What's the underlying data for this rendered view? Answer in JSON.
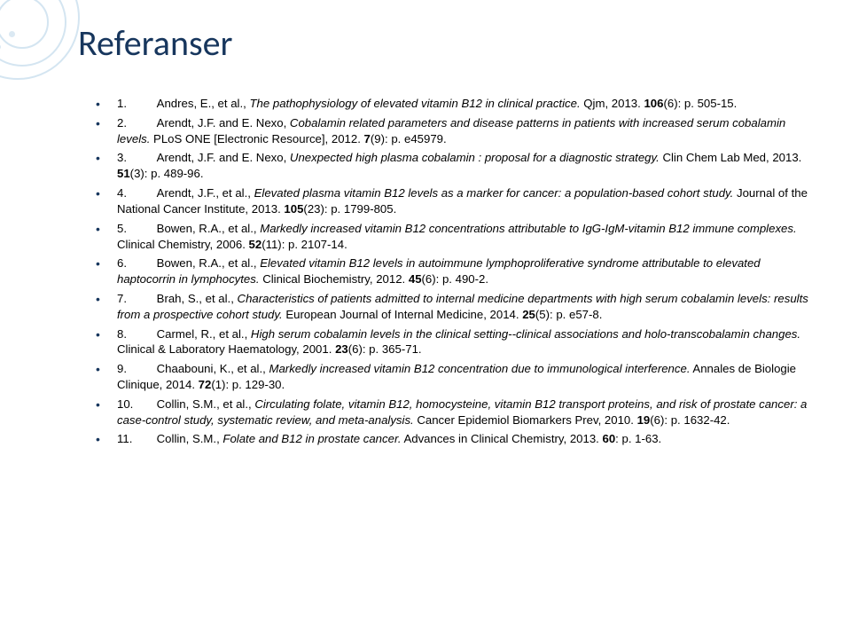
{
  "title": "Referanser",
  "colors": {
    "title_color": "#17365d",
    "bullet_color": "#17365d",
    "decoration_color": "#b8d4e8",
    "text_color": "#000000",
    "background": "#ffffff"
  },
  "typography": {
    "title_fontsize": 40,
    "body_fontsize": 13.2,
    "title_family": "Calibri",
    "body_family": "Verdana"
  },
  "references": [
    {
      "num": "1.",
      "lead": "Andres, E., et al., ",
      "title_italic": "The pathophysiology of elevated vitamin B12 in clinical practice.",
      "rest": " Qjm, 2013. ",
      "vol": "106",
      "tail": "(6): p. 505-15."
    },
    {
      "num": "2.",
      "lead": "Arendt, J.F. and E. Nexo, ",
      "title_italic": "Cobalamin related parameters and disease patterns in patients with increased serum cobalamin levels.",
      "rest": " PLoS ONE [Electronic Resource], 2012. ",
      "vol": "7",
      "tail": "(9): p. e45979."
    },
    {
      "num": "3.",
      "lead": "Arendt, J.F. and E. Nexo, ",
      "title_italic": "Unexpected high plasma cobalamin : proposal for a diagnostic strategy.",
      "rest": " Clin Chem Lab Med, 2013. ",
      "vol": "51",
      "tail": "(3): p. 489-96."
    },
    {
      "num": "4.",
      "lead": "Arendt, J.F., et al., ",
      "title_italic": "Elevated plasma vitamin B12 levels as a marker for cancer: a population-based cohort study.",
      "rest": " Journal of the National Cancer Institute, 2013. ",
      "vol": "105",
      "tail": "(23): p. 1799-805."
    },
    {
      "num": "5.",
      "lead": "Bowen, R.A., et al., ",
      "title_italic": "Markedly increased vitamin B12 concentrations attributable to IgG-IgM-vitamin B12 immune complexes.",
      "rest": " Clinical Chemistry, 2006. ",
      "vol": "52",
      "tail": "(11): p. 2107-14."
    },
    {
      "num": "6.",
      "lead": "Bowen, R.A., et al., ",
      "title_italic": "Elevated vitamin B12 levels in autoimmune lymphoproliferative syndrome attributable to elevated haptocorrin in lymphocytes.",
      "rest": " Clinical Biochemistry, 2012. ",
      "vol": "45",
      "tail": "(6): p. 490-2."
    },
    {
      "num": "7.",
      "lead": "Brah, S., et al., ",
      "title_italic": "Characteristics of patients admitted to internal medicine departments with high serum cobalamin levels: results from a prospective cohort study.",
      "rest": " European Journal of Internal Medicine, 2014. ",
      "vol": "25",
      "tail": "(5): p. e57-8."
    },
    {
      "num": "8.",
      "lead": "Carmel, R., et al., ",
      "title_italic": "High serum cobalamin levels in the clinical setting--clinical associations and holo-transcobalamin changes.",
      "rest": " Clinical & Laboratory Haematology, 2001. ",
      "vol": "23",
      "tail": "(6): p. 365-71."
    },
    {
      "num": "9.",
      "lead": "Chaabouni, K., et al., ",
      "title_italic": "Markedly increased vitamin B12 concentration due to immunological interference.",
      "rest": " Annales de Biologie Clinique, 2014. ",
      "vol": "72",
      "tail": "(1): p. 129-30."
    },
    {
      "num": "10.",
      "lead": "Collin, S.M., et al., ",
      "title_italic": "Circulating folate, vitamin B12, homocysteine, vitamin B12 transport proteins, and risk of prostate cancer: a case-control study, systematic review, and meta-analysis.",
      "rest": " Cancer Epidemiol Biomarkers Prev, 2010. ",
      "vol": "19",
      "tail": "(6): p. 1632-42."
    },
    {
      "num": "11.",
      "lead": "Collin, S.M., ",
      "title_italic": "Folate and B12 in prostate cancer.",
      "rest": " Advances in Clinical Chemistry, 2013. ",
      "vol": "60",
      "tail": ": p. 1-63."
    }
  ]
}
